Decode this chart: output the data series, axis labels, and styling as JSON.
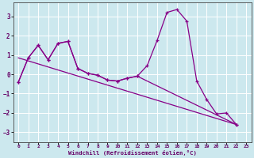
{
  "xlabel": "Windchill (Refroidissement éolien,°C)",
  "bg_color": "#cce8ee",
  "grid_color": "#ffffff",
  "line_color": "#880088",
  "ylim": [
    -3.5,
    3.7
  ],
  "xlim": [
    -0.5,
    23.5
  ],
  "yticks": [
    -3,
    -2,
    -1,
    0,
    1,
    2,
    3
  ],
  "xticks": [
    0,
    1,
    2,
    3,
    4,
    5,
    6,
    7,
    8,
    9,
    10,
    11,
    12,
    13,
    14,
    15,
    16,
    17,
    18,
    19,
    20,
    21,
    22,
    23
  ],
  "series_main": [
    [
      0,
      -0.4
    ],
    [
      1,
      0.85
    ],
    [
      2,
      1.5
    ],
    [
      3,
      0.75
    ],
    [
      4,
      1.6
    ],
    [
      5,
      1.7
    ],
    [
      6,
      0.3
    ],
    [
      7,
      0.05
    ],
    [
      8,
      -0.05
    ],
    [
      9,
      -0.3
    ],
    [
      10,
      -0.35
    ],
    [
      11,
      -0.2
    ],
    [
      12,
      -0.1
    ],
    [
      13,
      0.45
    ],
    [
      14,
      1.75
    ],
    [
      15,
      3.2
    ],
    [
      16,
      3.35
    ],
    [
      17,
      2.75
    ],
    [
      18,
      -0.35
    ],
    [
      19,
      -1.3
    ],
    [
      20,
      -2.05
    ],
    [
      21,
      -2.0
    ],
    [
      22,
      -2.6
    ]
  ],
  "series_smooth": [
    [
      0,
      -0.4
    ],
    [
      1,
      0.85
    ],
    [
      2,
      1.5
    ],
    [
      3,
      0.75
    ],
    [
      4,
      1.6
    ],
    [
      5,
      1.7
    ],
    [
      6,
      0.3
    ],
    [
      7,
      0.05
    ],
    [
      8,
      -0.05
    ],
    [
      9,
      -0.3
    ],
    [
      10,
      -0.35
    ],
    [
      11,
      -0.2
    ],
    [
      12,
      -0.1
    ],
    [
      22,
      -2.6
    ]
  ],
  "series_straight": [
    [
      0,
      0.85
    ],
    [
      22,
      -2.6
    ]
  ]
}
